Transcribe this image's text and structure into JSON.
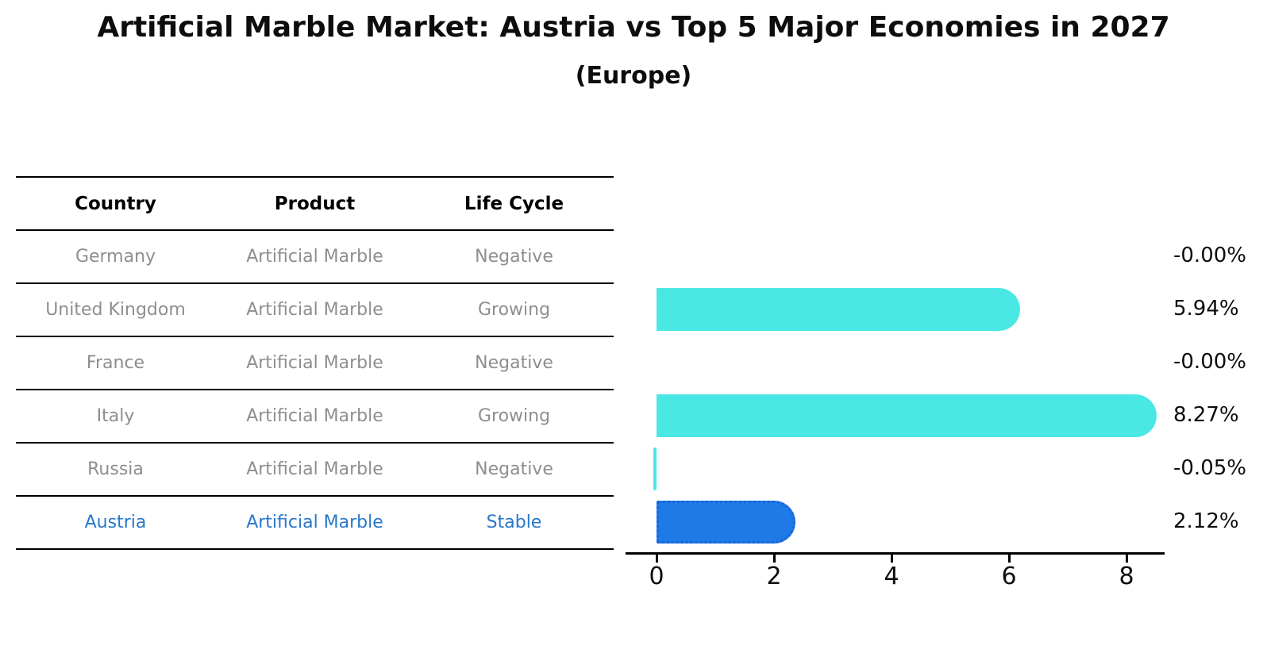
{
  "header": {
    "title": "Artificial Marble Market: Austria vs Top 5 Major Economies in 2027",
    "subtitle": "(Europe)"
  },
  "table": {
    "columns": [
      "Country",
      "Product",
      "Life Cycle"
    ],
    "rows": [
      {
        "country": "Germany",
        "product": "Artificial Marble",
        "life_cycle": "Negative",
        "highlight": false
      },
      {
        "country": "United Kingdom",
        "product": "Artificial Marble",
        "life_cycle": "Growing",
        "highlight": false
      },
      {
        "country": "France",
        "product": "Artificial Marble",
        "life_cycle": "Negative",
        "highlight": false
      },
      {
        "country": "Italy",
        "product": "Artificial Marble",
        "life_cycle": "Growing",
        "highlight": false
      },
      {
        "country": "Russia",
        "product": "Artificial Marble",
        "life_cycle": "Negative",
        "highlight": false
      },
      {
        "country": "Austria",
        "product": "Artificial Marble",
        "life_cycle": "Stable",
        "highlight": true
      }
    ]
  },
  "chart_data": {
    "type": "bar",
    "orientation": "horizontal",
    "title": "Artificial Marble Market: Austria vs Top 5 Major Economies in 2027",
    "subtitle": "(Europe)",
    "categories": [
      "Germany",
      "United Kingdom",
      "France",
      "Italy",
      "Russia",
      "Austria"
    ],
    "values": [
      -0.0,
      5.94,
      -0.0,
      8.27,
      -0.05,
      2.12
    ],
    "value_labels": [
      "-0.00%",
      "5.94%",
      "-0.00%",
      "8.27%",
      "-0.05%",
      "2.12%"
    ],
    "highlights": [
      false,
      false,
      false,
      false,
      false,
      true
    ],
    "xticks": [
      0,
      2,
      4,
      6,
      8
    ],
    "xlim": [
      -0.5,
      8.7
    ],
    "grid": false,
    "legend": false,
    "bar_color": "#4ae8e4",
    "highlight_bar_color": "#1f7ae8",
    "highlight_text_color": "#2878cc",
    "units": "percent"
  }
}
